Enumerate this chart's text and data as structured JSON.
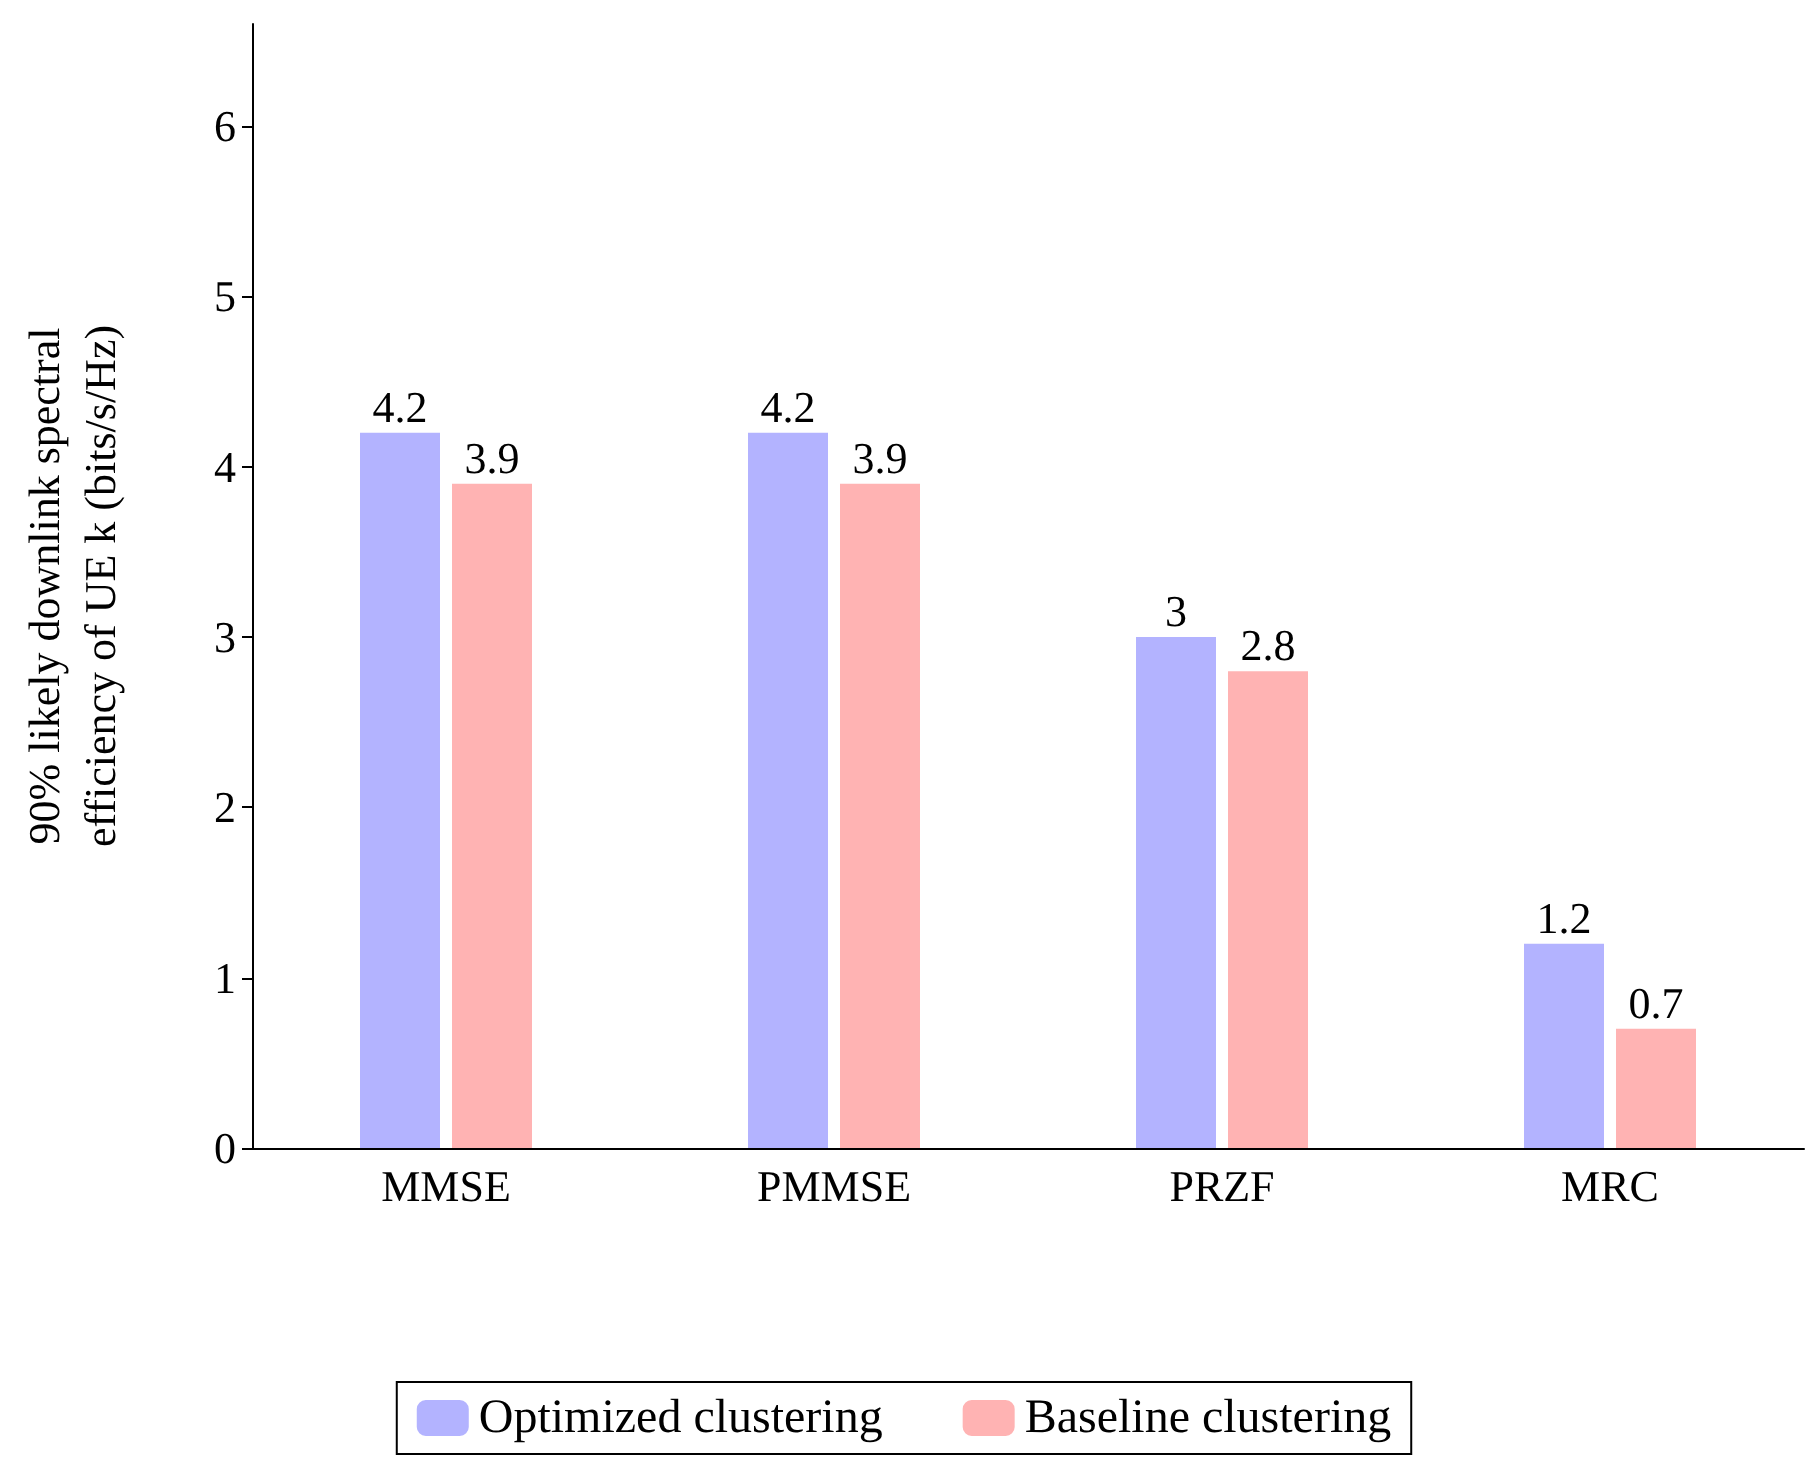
{
  "chart_data": {
    "type": "bar",
    "ylabel": "90% likely downlink spectral\nefficiency of UE k (bits/s/Hz)",
    "categories": [
      "MMSE",
      "PMMSE",
      "PRZF",
      "MRC"
    ],
    "series": [
      {
        "name": "Optimized clustering",
        "color": "#b3b3ff",
        "values": [
          4.2,
          4.2,
          3,
          1.2
        ]
      },
      {
        "name": "Baseline clustering",
        "color": "#ffb3b3",
        "values": [
          3.9,
          3.9,
          2.8,
          0.7
        ]
      }
    ],
    "ylim": [
      0,
      6.6
    ],
    "yticks": [
      0,
      1,
      2,
      3,
      4,
      5,
      6
    ],
    "data_labels": true,
    "legend": "bottom"
  }
}
